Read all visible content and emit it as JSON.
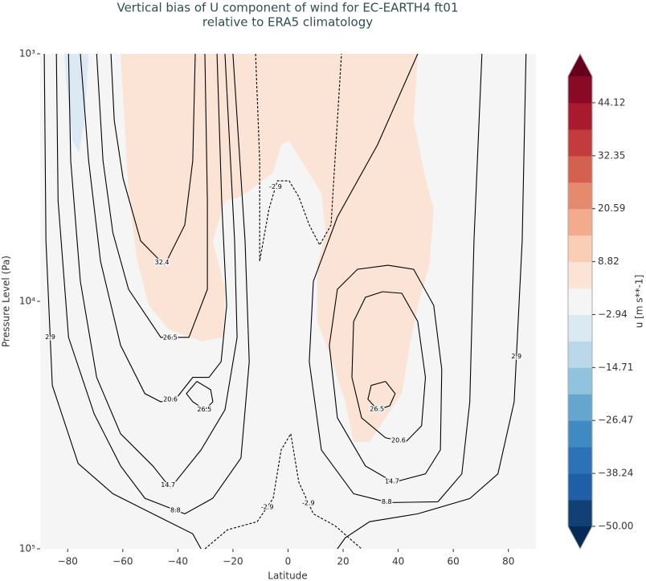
{
  "chart_data": {
    "type": "contour",
    "title": "Vertical bias of U component of wind for EC-EARTH4 ft01",
    "subtitle": "relative to ERA5 climatology",
    "xlabel": "Latitude",
    "ylabel": "Pressure Level (Pa)",
    "xlim": [
      -90,
      90
    ],
    "ylim": [
      1000,
      100000
    ],
    "yscale": "log",
    "y_inverted": true,
    "background": "#f5f5f5",
    "xticks": [
      {
        "value": -80,
        "label": "−80"
      },
      {
        "value": -60,
        "label": "−60"
      },
      {
        "value": -40,
        "label": "−40"
      },
      {
        "value": -20,
        "label": "−20"
      },
      0,
      20,
      40,
      60,
      80
    ],
    "yticks": [
      {
        "value": 1000,
        "label": "10³"
      },
      {
        "value": 10000,
        "label": "10⁴"
      },
      {
        "value": 100000,
        "label": "10⁵"
      }
    ],
    "contour_color": "#000000",
    "negative_linestyle": "dashed",
    "colorbar": {
      "label": "u [m s**-1]",
      "clim": [
        -50,
        50
      ],
      "under": "#062a58",
      "over": "#67001f",
      "colors": [
        "#123f74",
        "#1f5fa8",
        "#2c72b6",
        "#3f8ac2",
        "#64a6cf",
        "#90c3de",
        "#bad8ea",
        "#dbe9f3",
        "#f5f5f5",
        "#fbe4d6",
        "#facdb5",
        "#f4ab8d",
        "#e68a6d",
        "#d4604f",
        "#c33b3d",
        "#aa1a2f",
        "#890a25"
      ],
      "ticks": [
        {
          "value": -50,
          "label": "−50.00"
        },
        {
          "value": -38.24,
          "label": "−38.24"
        },
        {
          "value": -26.47,
          "label": "−26.47"
        },
        {
          "value": -14.71,
          "label": "−14.71"
        },
        {
          "value": -2.94,
          "label": "−2.94"
        },
        8.82,
        20.59,
        32.35,
        44.12
      ]
    },
    "fills": [
      {
        "value": 5.88,
        "x": [
          -60.8,
          47.1,
          45.6,
          49.9,
          52.9,
          51.3,
          47.1,
          44.2,
          41.3,
          35.4,
          29.6,
          23.8,
          20.8,
          15.0,
          10.6,
          10.6,
          13.6,
          12.1,
          4.8,
          0.4,
          -2.5,
          -5.4,
          -11.2,
          -17.1,
          -22.9,
          -27.3,
          -22.9,
          -23.5,
          -31.6,
          -43.3,
          -50.6,
          -55.0,
          -57.9
        ],
        "y": [
          1000,
          1000,
          1860,
          3190,
          4230,
          7150,
          10380,
          15060,
          23590,
          29550,
          36990,
          36990,
          25460,
          16220,
          12060,
          7150,
          5290,
          3640,
          2700,
          2240,
          2330,
          3020,
          3380,
          3780,
          3930,
          5700,
          8940,
          13980,
          14510,
          12980,
          10380,
          6630,
          3640
        ]
      },
      {
        "value": -5.88,
        "x": [
          -81.2,
          -72.4,
          -73.9,
          -75.9,
          -78.3,
          -80.6
        ],
        "y": [
          1000,
          1000,
          1860,
          2510,
          2240,
          1280
        ]
      }
    ],
    "contours": [
      {
        "level": 32.35,
        "label": "32.4",
        "x": [
          -64.3,
          -63.1,
          -59.9,
          -53.5,
          -44.8,
          -37.5,
          -34.6,
          -33.7
        ],
        "y": [
          1000,
          1860,
          3190,
          5700,
          7150,
          4910,
          2700,
          1000
        ]
      },
      {
        "level": 26.47,
        "label": "26.5",
        "x": [
          -69.5,
          -67.2,
          -63.6,
          -57.9,
          -46.2,
          -36.0,
          -29.3,
          -29.3,
          -30.2
        ],
        "y": [
          1000,
          2700,
          5290,
          8940,
          13980,
          13980,
          8940,
          3930,
          1000
        ]
      },
      {
        "level": 20.59,
        "label": "20.6",
        "x": [
          -75.4,
          -72.4,
          -68.1,
          -60.8,
          -52.0,
          -46.2,
          -40.4,
          -34.6,
          -28.7,
          -24.3,
          -22.3,
          -24.1,
          -25.8
        ],
        "y": [
          1000,
          2700,
          6880,
          15060,
          23590,
          25460,
          24500,
          20290,
          20290,
          17530,
          10380,
          3930,
          1000
        ]
      },
      {
        "level": 26.47,
        "label": "26.5",
        "x": [
          -33.1,
          -28.1,
          -27.3,
          -30.2,
          -34.6,
          -36.9,
          -33.1
        ],
        "y": [
          21060,
          22750,
          25460,
          27420,
          25460,
          23590,
          21060
        ]
      },
      {
        "level": 14.71,
        "label": "14.7",
        "x": [
          -79.7,
          -78.9,
          -75.4,
          -69.5,
          -60.8,
          -49.1,
          -42.7,
          -31.6,
          -22.9,
          -18.5,
          -19.4,
          -22.9
        ],
        "y": [
          1000,
          2700,
          8300,
          20290,
          34280,
          46220,
          56800,
          39840,
          27420,
          13980,
          5700,
          1000
        ]
      },
      {
        "level": 8.82,
        "label": "8.8",
        "x": [
          -84.1,
          -83.5,
          -79.7,
          -70.4,
          -60.8,
          -52.0,
          -37.5,
          -27.3,
          -17.1,
          -14.1,
          -15.6,
          -20.0
        ],
        "y": [
          1000,
          3930,
          13980,
          28470,
          46220,
          62450,
          72170,
          62450,
          42920,
          17530,
          5700,
          1000
        ]
      },
      {
        "level": 2.94,
        "label": "2.9",
        "x": [
          -88.5,
          -87.9,
          -85.6,
          -76.2,
          -63.6,
          -46.2,
          -34.6,
          -31.6
        ],
        "y": [
          1000,
          5700,
          21860,
          45200,
          59900,
          74910,
          86940,
          100000
        ]
      },
      {
        "level": 26.47,
        "label": "26.5",
        "x": [
          35.4,
          38.9,
          36.9,
          32.5,
          29.0,
          30.2,
          35.4
        ],
        "y": [
          21060,
          23590,
          26420,
          27420,
          24880,
          21860,
          21060
        ]
      },
      {
        "level": 20.59,
        "label": "20.6",
        "x": [
          34.3,
          41.3,
          47.1,
          49.9,
          48.5,
          42.7,
          35.4,
          26.7,
          23.2,
          23.8,
          28.1,
          34.3
        ],
        "y": [
          9140,
          9280,
          12060,
          20290,
          31830,
          36990,
          35580,
          29550,
          20290,
          12060,
          9630,
          9140
        ]
      },
      {
        "level": 14.71,
        "label": "14.7",
        "x": [
          36.3,
          45.6,
          52.9,
          55.8,
          55.3,
          49.9,
          38.3,
          28.1,
          17.9,
          15.0,
          17.9,
          25.2,
          36.3
        ],
        "y": [
          7150,
          7420,
          10380,
          18840,
          39840,
          49780,
          53800,
          46220,
          29550,
          15060,
          8940,
          7420,
          7150
        ]
      },
      {
        "level": 8.82,
        "label": "8.8",
        "x": [
          70.4,
          67.5,
          66.0,
          63.1,
          54.4,
          36.6,
          23.8,
          12.1,
          7.7,
          9.2,
          17.9,
          32.5,
          47.1
        ],
        "y": [
          1000,
          5700,
          25460,
          49780,
          64540,
          65020,
          59900,
          39840,
          17530,
          8300,
          4560,
          2330,
          1000
        ]
      },
      {
        "level": 2.94,
        "label": "2.9",
        "x": [
          86.4,
          85.0,
          82.1,
          76.2,
          66.0,
          47.1,
          29.6,
          20.8,
          17.9
        ],
        "y": [
          1000,
          5700,
          25460,
          49780,
          62640,
          72170,
          77700,
          90230,
          100000
        ]
      },
      {
        "level": -2.94,
        "label": "-2.9",
        "x": [
          -11.8,
          -10.3,
          -10.3,
          -6.9,
          -3.9,
          0.4,
          3.9,
          7.7,
          11.5,
          15.6,
          17.9,
          19.4
        ],
        "y": [
          1000,
          2700,
          6880,
          4230,
          3260,
          3260,
          3780,
          4910,
          5920,
          4910,
          1860,
          1000
        ]
      },
      {
        "level": -2.94,
        "label": "-2.9",
        "x": [
          -30.2,
          -22.0,
          -11.2,
          -5.4,
          -2.5,
          1.0
        ],
        "y": [
          100000,
          83770,
          77700,
          62450,
          39840,
          34280
        ]
      },
      {
        "level": -2.94,
        "label": "-2.9",
        "x": [
          1.0,
          3.9,
          9.2,
          17.1,
          26.7
        ],
        "y": [
          34280,
          53800,
          72170,
          80690,
          100000
        ]
      }
    ]
  }
}
